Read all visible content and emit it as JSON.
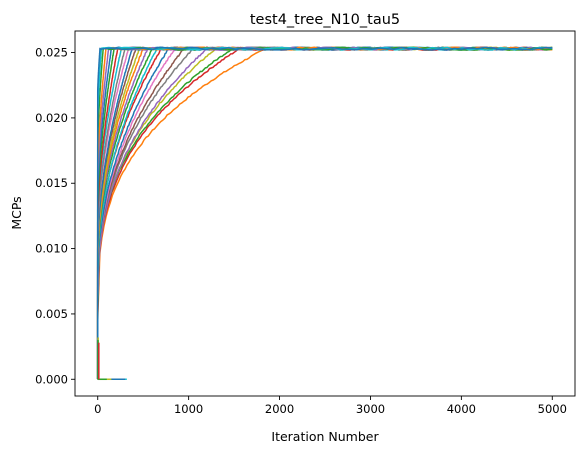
{
  "chart_data": {
    "type": "line",
    "title": "test4_tree_N10_tau5",
    "xlabel": "Iteration Number",
    "ylabel": "MCPs",
    "xlim": [
      -250,
      5250
    ],
    "ylim": [
      -0.00128,
      0.02665
    ],
    "xticks": [
      0,
      1000,
      2000,
      3000,
      4000,
      5000
    ],
    "xtick_labels": [
      "0",
      "1000",
      "2000",
      "3000",
      "4000",
      "5000"
    ],
    "yticks": [
      0.0,
      0.005,
      0.01,
      0.015,
      0.02,
      0.025
    ],
    "ytick_labels": [
      "0.000",
      "0.005",
      "0.010",
      "0.015",
      "0.020",
      "0.025"
    ],
    "grid": false,
    "legend": "none",
    "plateau": 0.0253,
    "palette": [
      "#1f77b4",
      "#ff7f0e",
      "#2ca02c",
      "#d62728",
      "#9467bd",
      "#8c564b",
      "#e377c2",
      "#7f7f7f",
      "#bcbd22",
      "#17becf"
    ],
    "series": [
      {
        "end": 1850,
        "start_y": 0.0045,
        "shape": 0.32,
        "color": "#ff7f0e"
      },
      {
        "end": 1560,
        "start_y": 0.005,
        "shape": 0.34,
        "color": "#d62728"
      },
      {
        "end": 1480,
        "start_y": 0.0055,
        "shape": 0.35,
        "color": "#2ca02c"
      },
      {
        "end": 1300,
        "start_y": 0.006,
        "shape": 0.38,
        "color": "#bcbd22"
      },
      {
        "end": 1200,
        "start_y": 0.006,
        "shape": 0.4,
        "color": "#9467bd"
      },
      {
        "end": 1050,
        "start_y": 0.0065,
        "shape": 0.42,
        "color": "#7f7f7f"
      },
      {
        "end": 950,
        "start_y": 0.007,
        "shape": 0.45,
        "color": "#8c564b"
      },
      {
        "end": 850,
        "start_y": 0.007,
        "shape": 0.46,
        "color": "#e377c2"
      },
      {
        "end": 780,
        "start_y": 0.0075,
        "shape": 0.48,
        "color": "#1f77b4"
      },
      {
        "end": 700,
        "start_y": 0.008,
        "shape": 0.48,
        "color": "#d62728"
      },
      {
        "end": 650,
        "start_y": 0.008,
        "shape": 0.5,
        "color": "#17becf"
      },
      {
        "end": 600,
        "start_y": 0.0085,
        "shape": 0.5,
        "color": "#2ca02c"
      },
      {
        "end": 550,
        "start_y": 0.009,
        "shape": 0.52,
        "color": "#9467bd"
      },
      {
        "end": 500,
        "start_y": 0.009,
        "shape": 0.52,
        "color": "#ff7f0e"
      },
      {
        "end": 460,
        "start_y": 0.0095,
        "shape": 0.54,
        "color": "#bcbd22"
      },
      {
        "end": 420,
        "start_y": 0.01,
        "shape": 0.55,
        "color": "#8c564b"
      },
      {
        "end": 380,
        "start_y": 0.01,
        "shape": 0.56,
        "color": "#1f77b4"
      },
      {
        "end": 340,
        "start_y": 0.011,
        "shape": 0.57,
        "color": "#e377c2"
      },
      {
        "end": 300,
        "start_y": 0.011,
        "shape": 0.58,
        "color": "#7f7f7f"
      },
      {
        "end": 260,
        "start_y": 0.012,
        "shape": 0.6,
        "color": "#17becf"
      },
      {
        "end": 220,
        "start_y": 0.012,
        "shape": 0.6,
        "color": "#d62728"
      },
      {
        "end": 180,
        "start_y": 0.013,
        "shape": 0.62,
        "color": "#2ca02c"
      },
      {
        "end": 150,
        "start_y": 0.014,
        "shape": 0.64,
        "color": "#1f77b4"
      },
      {
        "end": 120,
        "start_y": 0.015,
        "shape": 0.66,
        "color": "#9467bd"
      },
      {
        "end": 90,
        "start_y": 0.016,
        "shape": 0.68,
        "color": "#ff7f0e"
      },
      {
        "end": 60,
        "start_y": 0.018,
        "shape": 0.7,
        "color": "#2ca02c"
      },
      {
        "end": 40,
        "start_y": 0.02,
        "shape": 0.72,
        "color": "#17becf"
      },
      {
        "end": 25,
        "start_y": 0.022,
        "shape": 0.75,
        "color": "#1f77b4"
      }
    ],
    "zero_segments": [
      {
        "x0": 0,
        "x1": 320,
        "color": "#17becf"
      },
      {
        "x0": 0,
        "x1": 300,
        "color": "#1f77b4"
      },
      {
        "x0": 0,
        "x1": 150,
        "color": "#bcbd22"
      },
      {
        "x0": 0,
        "x1": 100,
        "color": "#2ca02c"
      }
    ],
    "spikes": [
      {
        "x": 5,
        "y": 0.0032,
        "color": "#bcbd22"
      },
      {
        "x": 8,
        "y": 0.0025,
        "color": "#ff7f0e"
      },
      {
        "x": 3,
        "y": 0.003,
        "color": "#2ca02c"
      },
      {
        "x": 12,
        "y": 0.0028,
        "color": "#d62728"
      }
    ]
  }
}
